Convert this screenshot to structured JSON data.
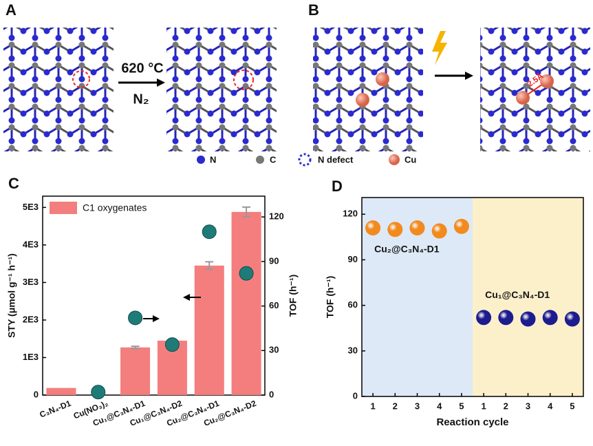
{
  "figure": {
    "panels": [
      {
        "label": "A",
        "annotations": [
          "620 °C",
          "N₂"
        ]
      },
      {
        "label": "B",
        "annotations": [
          "2.5Å"
        ]
      }
    ],
    "legend": [
      "N",
      "C",
      "N defect",
      "Cu"
    ]
  },
  "chart_data": [
    {
      "type": "bar",
      "panel": "C",
      "categories": [
        "C₃N₄-D1",
        "Cu(NO₃)₂",
        "Cu₁@C₃N₄-D1",
        "Cu₁@C₃N₄-D2",
        "Cu₂@C₃N₄-D1",
        "Cu₂@C₃N₄-D2"
      ],
      "series": [
        {
          "name": "C1 oxygenates",
          "color": "#f47e7e",
          "values": [
            190,
            0,
            1270,
            1450,
            3450,
            4880
          ],
          "errors": [
            null,
            null,
            30,
            35,
            100,
            130
          ]
        },
        {
          "type": "scatter",
          "axis": "y2",
          "color": "#1e7b78",
          "values": [
            null,
            2,
            52,
            34,
            110,
            82
          ]
        }
      ],
      "ylabel": "STY (μmol g⁻¹ h⁻¹)",
      "y2label": "TOF (h⁻¹)",
      "ylim": [
        0,
        5300
      ],
      "yticks": [
        0,
        {
          "value": 1000,
          "label": "1E3"
        },
        {
          "value": 2000,
          "label": "2E3"
        },
        {
          "value": 3000,
          "label": "3E3"
        },
        {
          "value": 4000,
          "label": "4E3"
        },
        {
          "value": 5000,
          "label": "5E3"
        }
      ],
      "y2lim": [
        0,
        134
      ],
      "y2ticks": [
        0,
        30,
        60,
        90,
        120
      ],
      "legend": "upper left"
    },
    {
      "type": "scatter",
      "panel": "D",
      "categories": [
        "1",
        "2",
        "3",
        "4",
        "5",
        "1",
        "2",
        "3",
        "4",
        "5"
      ],
      "series": [
        {
          "name": "Cu₂@C₃N₄-D1",
          "color": "#f28a1e",
          "values": [
            111,
            110,
            111,
            109,
            112,
            null,
            null,
            null,
            null,
            null
          ]
        },
        {
          "name": "Cu₁@C₃N₄-D1",
          "color": "#1c1c90",
          "values": [
            null,
            null,
            null,
            null,
            null,
            52,
            52,
            51,
            52,
            51
          ]
        }
      ],
      "background_colors": [
        "#dde9f6",
        "#fcf0cb"
      ],
      "xlabel": "Reaction cycle",
      "ylabel": "TOF (h⁻¹)",
      "ylim": [
        0,
        131
      ],
      "yticks": [
        0,
        30,
        60,
        90,
        120
      ]
    }
  ]
}
